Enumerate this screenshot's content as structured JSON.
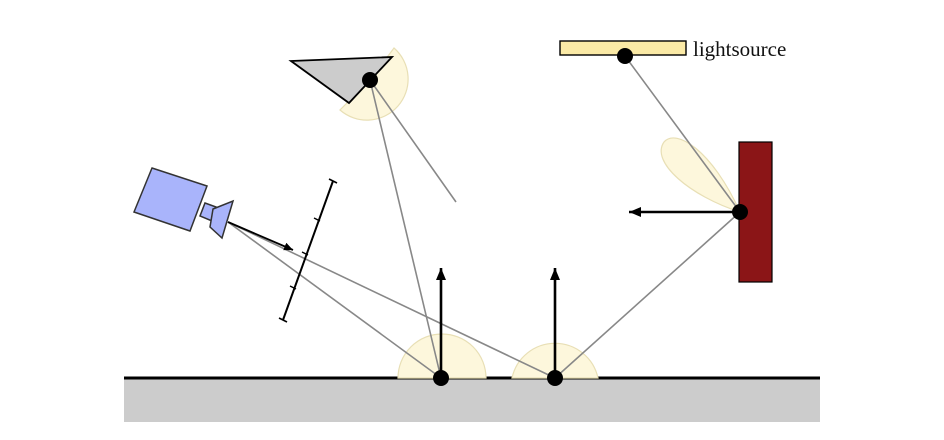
{
  "labels": {
    "lightsource": "lightsource"
  },
  "colors": {
    "background": "#ffffff",
    "floor": "#cccccc",
    "lobe_fill": "#fdf7dc",
    "lobe_stroke": "#e8dfb5",
    "light_panel": "#fbeaa6",
    "wall": "#8b1517",
    "camera": "#a9b4fb",
    "occluder": "#cccccc",
    "ray": "#888888",
    "ink": "#000000"
  },
  "icons": {
    "camera": "camera-icon",
    "light": "light-source-icon",
    "occluder": "occluder-triangle-icon",
    "wall": "wall-panel-icon"
  }
}
